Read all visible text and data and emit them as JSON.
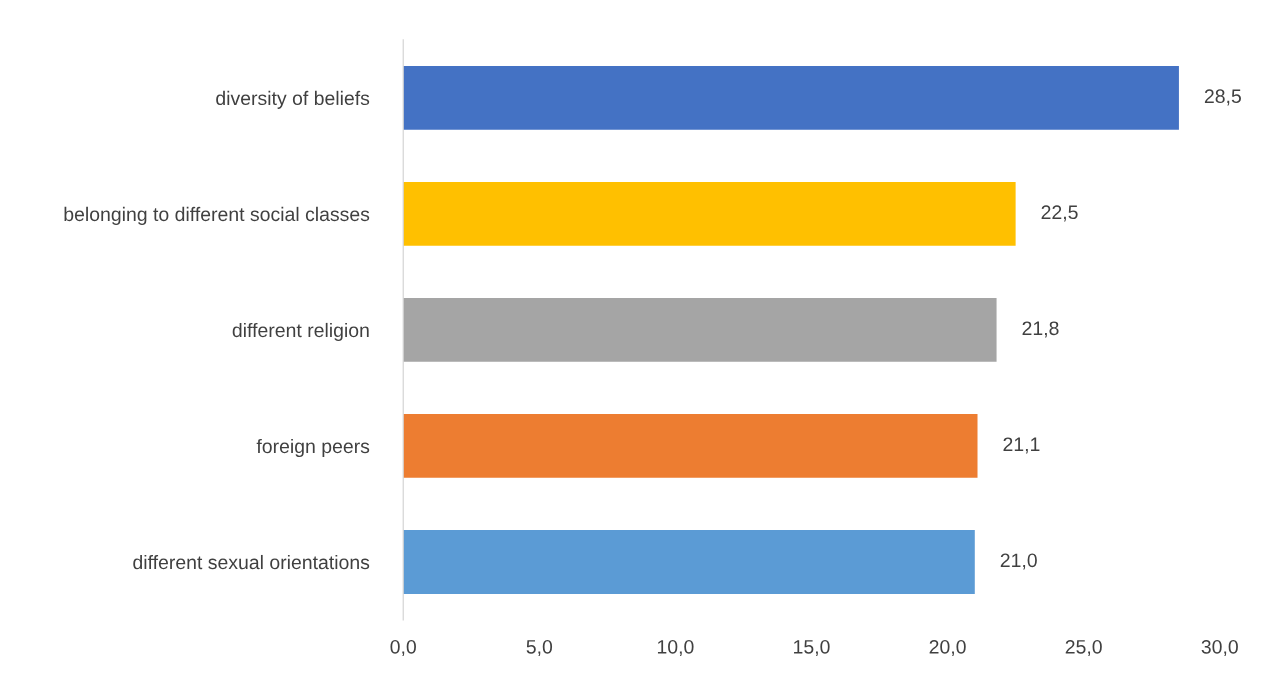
{
  "chart_data": {
    "type": "bar",
    "orientation": "horizontal",
    "categories": [
      "diversity of beliefs",
      "belonging to different social classes",
      "different religion",
      "foreign peers",
      "different sexual orientations"
    ],
    "values": [
      28.5,
      22.5,
      21.8,
      21.1,
      21.0
    ],
    "colors": [
      "#4472c4",
      "#ffc000",
      "#a5a5a5",
      "#ed7d31",
      "#5b9bd5"
    ],
    "value_labels": [
      "28,5",
      "22,5",
      "21,8",
      "21,1",
      "21,0"
    ],
    "xlim": [
      0,
      30
    ],
    "xticks": [
      {
        "value": 0,
        "label": "0,0"
      },
      {
        "value": 5,
        "label": "5,0"
      },
      {
        "value": 10,
        "label": "10,0"
      },
      {
        "value": 15,
        "label": "15,0"
      },
      {
        "value": 20,
        "label": "20,0"
      },
      {
        "value": 25,
        "label": "25,0"
      },
      {
        "value": 30,
        "label": "30,0"
      }
    ],
    "grid": false,
    "legend": false
  }
}
